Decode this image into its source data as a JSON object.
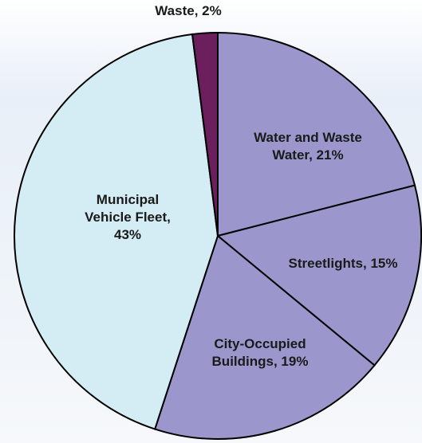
{
  "chart_data": {
    "type": "pie",
    "slices": [
      {
        "label": "Water and Waste Water",
        "value": 21,
        "display": [
          "Water and Waste",
          "Water, 21%"
        ],
        "color": "#9b97cc"
      },
      {
        "label": "Streetlights",
        "value": 15,
        "display": [
          "Streetlights, 15%"
        ],
        "color": "#9b97cc"
      },
      {
        "label": "City-Occupied Buildings",
        "value": 19,
        "display": [
          "City-Occupied",
          "Buildings, 19%"
        ],
        "color": "#9b97cc"
      },
      {
        "label": "Municipal Vehicle Fleet",
        "value": 43,
        "display": [
          "Municipal",
          "Vehicle Fleet,",
          "43%"
        ],
        "color": "#d4ecf4"
      },
      {
        "label": "Waste",
        "value": 2,
        "display": [
          "Waste, 2%"
        ],
        "color": "#6b1f5c"
      }
    ]
  }
}
